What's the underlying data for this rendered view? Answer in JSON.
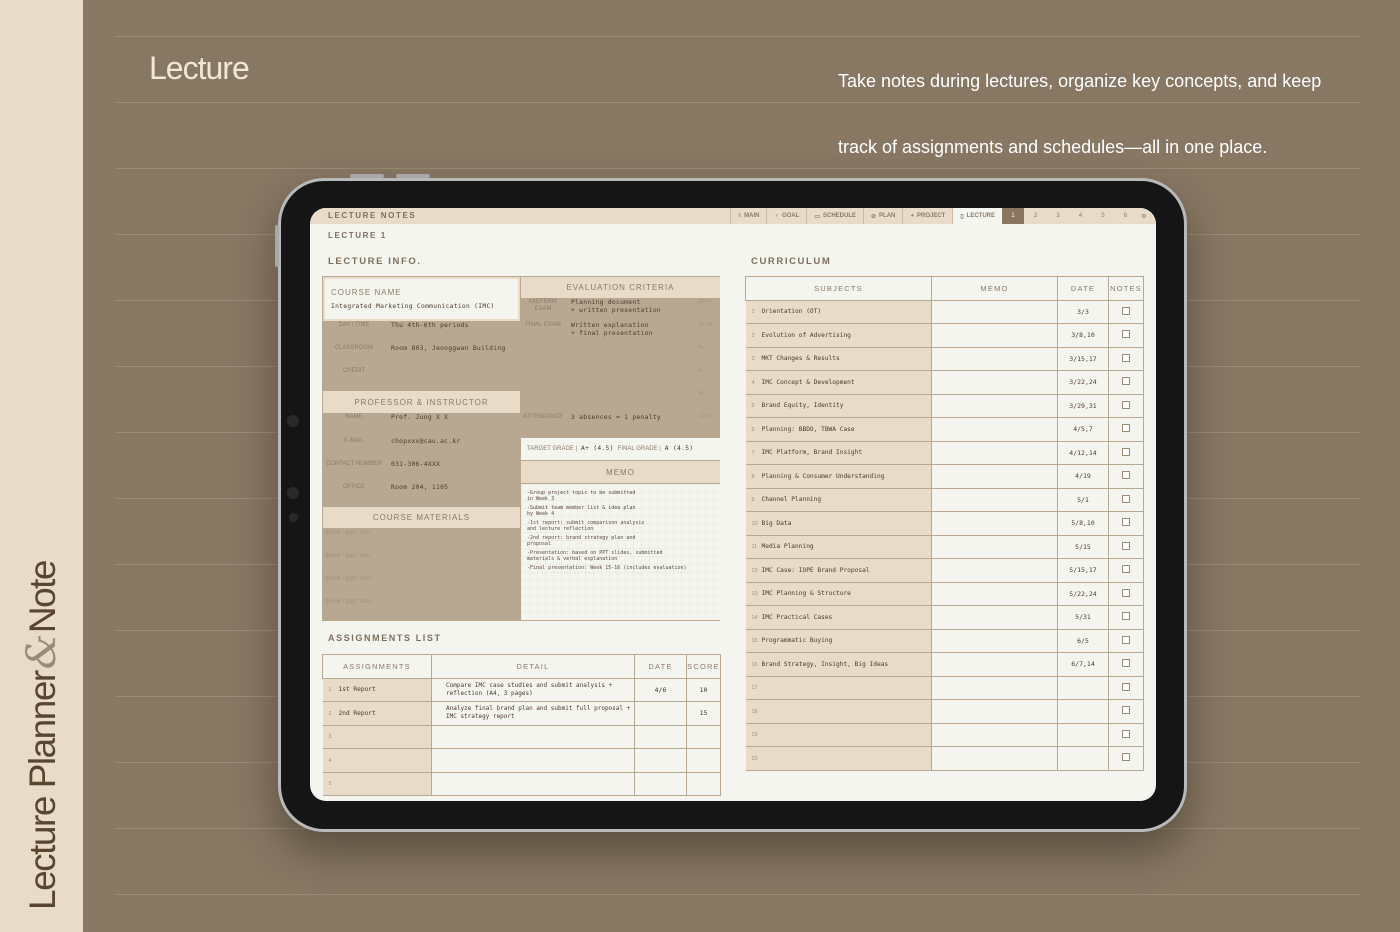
{
  "sidebar": {
    "brand_part1": "Lecture Planner",
    "brand_amp": "&",
    "brand_part2": "Note"
  },
  "header": {
    "title": "Lecture",
    "description": "Take notes during lectures, organize key concepts, and keep track of assignments and schedules—all in one place."
  },
  "colors": {
    "background": "#877763",
    "sidebar": "#e8dcc8",
    "accent": "#8a7560",
    "screen": "#f5f5f0"
  },
  "app": {
    "title": "LECTURE NOTES",
    "nav": [
      {
        "label": "MAIN",
        "icon": "menu-icon"
      },
      {
        "label": "GOAL",
        "icon": "trophy-icon"
      },
      {
        "label": "SCHEDULE",
        "icon": "calendar-icon"
      },
      {
        "label": "PLAN",
        "icon": "check-circle-icon"
      },
      {
        "label": "PROJECT",
        "icon": "pie-chart-icon"
      },
      {
        "label": "LECTURE",
        "icon": "document-icon",
        "active": true
      }
    ],
    "pages": [
      "1",
      "2",
      "3",
      "4",
      "5",
      "6"
    ],
    "active_page": "1",
    "lecture_title": "LECTURE 1",
    "info": {
      "heading": "LECTURE INFO.",
      "course_name_label": "COURSE NAME",
      "course_name": "Integrated Marketing Communication (IMC)",
      "eval_header": "EVALUATION CRITERIA",
      "fields": [
        {
          "label": "DAY / TIME",
          "value": "Thu 4th-6th periods"
        },
        {
          "label": "CLASSROOM",
          "value": "Room 803, Jeonggwan Building"
        },
        {
          "label": "CREDIT",
          "value": ""
        }
      ],
      "eval": [
        {
          "label": "MIDTERM EXAM",
          "value": "Planning document\n+ written presentation",
          "pct": "30 %"
        },
        {
          "label": "FINAL EXAM",
          "value": "Written explanation\n+ final presentation",
          "pct": "35 %"
        },
        {
          "label": "",
          "value": "",
          "pct": "%"
        },
        {
          "label": "",
          "value": "",
          "pct": "%"
        },
        {
          "label": "",
          "value": "",
          "pct": "%"
        },
        {
          "label": "ATTENDANCE",
          "value": "3 absences = 1 penalty",
          "pct": "10 %"
        }
      ],
      "prof_header": "PROFESSOR & INSTRUCTOR",
      "prof": [
        {
          "label": "NAME",
          "value": "Prof. Jung X X"
        },
        {
          "label": "E-MAIL",
          "value": "chopxxx@cau.ac.kr"
        },
        {
          "label": "CONTACT NUMBER",
          "value": "031-306-4XXX"
        },
        {
          "label": "OFFICE",
          "value": "Room 204, 1105"
        }
      ],
      "target_grade_label": "TARGET GRADE |",
      "target_grade": "A+ (4.5)",
      "final_grade_label": "FINAL GRADE |",
      "final_grade": "A (4.5)",
      "memo_header": "MEMO",
      "memo": [
        "-Group project topic to be submitted\nin Week 3",
        "-Submit team member list & idea plan\nby Week 4",
        "-1st report: submit comparison analysis\nand lecture reflection",
        "-2nd report: brand strategy plan and\nproposal",
        "-Presentation: based on PPT slides, submitted\nmaterials & verbal explanation",
        "-Final presentation: Week 15-16 (includes evaluation)"
      ],
      "materials_header": "COURSE MATERIALS",
      "materials_options": "□book □ppt □etc."
    },
    "assignments": {
      "heading": "ASSIGNMENTS LIST",
      "columns": [
        "ASSIGNMENTS",
        "DETAIL",
        "DATE",
        "SCORE"
      ],
      "rows": [
        {
          "n": "1",
          "name": "1st Report",
          "detail": "Compare IMC case studies and submit analysis + reflection (A4, 3 pages)",
          "date": "4/6",
          "score": "10"
        },
        {
          "n": "2",
          "name": "2nd Report",
          "detail": "Analyze final brand plan and submit full proposal + IMC strategy report",
          "date": "",
          "score": "15"
        },
        {
          "n": "3",
          "name": "",
          "detail": "",
          "date": "",
          "score": ""
        },
        {
          "n": "4",
          "name": "",
          "detail": "",
          "date": "",
          "score": ""
        },
        {
          "n": "5",
          "name": "",
          "detail": "",
          "date": "",
          "score": ""
        }
      ]
    },
    "curriculum": {
      "heading": "CURRICULUM",
      "columns": [
        "SUBJECTS",
        "MEMO",
        "DATE",
        "NOTES"
      ],
      "rows": [
        {
          "n": "1",
          "subject": "Orientation (OT)",
          "date": "3/3"
        },
        {
          "n": "2",
          "subject": "Evolution of Advertising",
          "date": "3/8,10"
        },
        {
          "n": "3",
          "subject": "MKT Changes & Results",
          "date": "3/15,17"
        },
        {
          "n": "4",
          "subject": "IMC Concept & Development",
          "date": "3/22,24"
        },
        {
          "n": "5",
          "subject": "Brand Equity, Identity",
          "date": "3/29,31"
        },
        {
          "n": "6",
          "subject": "Planning: BBDO, TBWA Case",
          "date": "4/5,7"
        },
        {
          "n": "7",
          "subject": "IMC Platform, Brand Insight",
          "date": "4/12,14"
        },
        {
          "n": "8",
          "subject": "Planning & Consumer Understanding",
          "date": "4/19"
        },
        {
          "n": "9",
          "subject": "Channel Planning",
          "date": "5/1"
        },
        {
          "n": "10",
          "subject": "Big Data",
          "date": "5/8,10"
        },
        {
          "n": "11",
          "subject": "Media Planning",
          "date": "5/15"
        },
        {
          "n": "12",
          "subject": "IMC Case: IOPE Brand Proposal",
          "date": "5/15,17"
        },
        {
          "n": "13",
          "subject": "IMC Planning & Structure",
          "date": "5/22,24"
        },
        {
          "n": "14",
          "subject": "IMC Practical Cases",
          "date": "5/31"
        },
        {
          "n": "15",
          "subject": "Programmatic Buying",
          "date": "6/5"
        },
        {
          "n": "16",
          "subject": "Brand Strategy, Insight, Big Ideas",
          "date": "6/7,14"
        },
        {
          "n": "17",
          "subject": "",
          "date": ""
        },
        {
          "n": "18",
          "subject": "",
          "date": ""
        },
        {
          "n": "19",
          "subject": "",
          "date": ""
        },
        {
          "n": "20",
          "subject": "",
          "date": ""
        }
      ]
    }
  }
}
